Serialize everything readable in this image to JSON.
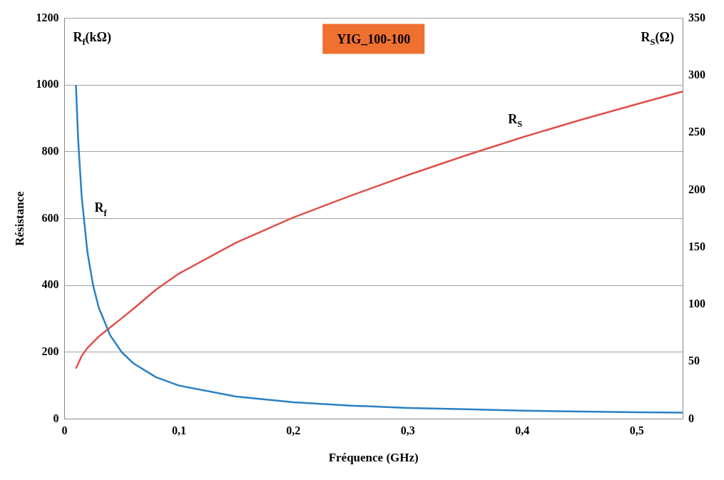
{
  "chart_data": {
    "type": "line",
    "title": "YIG_100-100",
    "xlabel": "Fréquence (GHz)",
    "ylabel": "Résistance",
    "annotations": [
      "R$_{f}$(kΩ)",
      "R$_{S}$(Ω)"
    ],
    "series": [
      {
        "name": "R$_{f}$",
        "color": "#2a80c4",
        "x": [
          0.01,
          0.012,
          0.015,
          0.02,
          0.025,
          0.03,
          0.04,
          0.05,
          0.06,
          0.08,
          0.1,
          0.15,
          0.2,
          0.25,
          0.3,
          0.35,
          0.4,
          0.45,
          0.5,
          0.54
        ],
        "values": [
          1000,
          833,
          667,
          500,
          400,
          333,
          250,
          200,
          167,
          125,
          100,
          67,
          50,
          40,
          33,
          29,
          25,
          22,
          20,
          19
        ]
      },
      {
        "name": "R$_{S}$",
        "color": "#e0504a",
        "axis": "y2",
        "x": [
          0.01,
          0.015,
          0.02,
          0.03,
          0.04,
          0.05,
          0.06,
          0.08,
          0.1,
          0.15,
          0.2,
          0.25,
          0.3,
          0.35,
          0.4,
          0.45,
          0.5,
          0.54
        ],
        "values": [
          44,
          55,
          62,
          72,
          80,
          88,
          96,
          113,
          127,
          154,
          176,
          195,
          213,
          230,
          246,
          261,
          275,
          286
        ]
      }
    ],
    "xlim": [
      0,
      0.54
    ],
    "xticks": [
      0,
      {
        "value": 0.1,
        "label": "0,1"
      },
      {
        "value": 0.2,
        "label": "0,2"
      },
      {
        "value": 0.3,
        "label": "0,3"
      },
      {
        "value": 0.4,
        "label": "0,4"
      },
      {
        "value": 0.5,
        "label": "0,5"
      }
    ],
    "ylim": [
      0,
      1200
    ],
    "yticks": [
      0,
      200,
      400,
      600,
      800,
      1000,
      1200
    ],
    "y2lim": [
      0,
      350
    ],
    "y2ticks": [
      0,
      50,
      100,
      150,
      200,
      250,
      300,
      350
    ],
    "grid": "y",
    "legend": false,
    "marker": "none",
    "line_style": "solid"
  }
}
